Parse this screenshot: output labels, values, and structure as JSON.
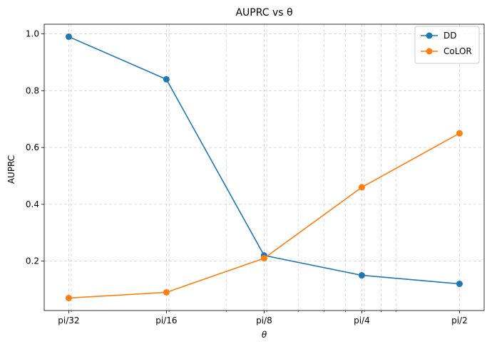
{
  "chart_data": {
    "type": "line",
    "title": "AUPRC vs θ",
    "xlabel": "θ",
    "ylabel": "AUPRC",
    "x_scale": "log",
    "x": [
      0.0982,
      0.1963,
      0.3927,
      0.7854,
      1.5708
    ],
    "x_tick_labels": [
      "pi/32",
      "pi/16",
      "pi/8",
      "pi/4",
      "pi/2"
    ],
    "xlim": [
      0.0825,
      1.871
    ],
    "ylim": [
      0.026,
      1.034
    ],
    "yticks": [
      0.2,
      0.4,
      0.6,
      0.8,
      1.0
    ],
    "ytick_labels": [
      "0.2",
      "0.4",
      "0.6",
      "0.8",
      "1.0"
    ],
    "grid": true,
    "legend_position": "top-right",
    "series": [
      {
        "name": "DD",
        "color": "#1f77b4",
        "values": [
          0.99,
          0.84,
          0.22,
          0.15,
          0.12
        ]
      },
      {
        "name": "CoLOR",
        "color": "#ff7f0e",
        "values": [
          0.07,
          0.09,
          0.21,
          0.46,
          0.65
        ]
      }
    ]
  }
}
